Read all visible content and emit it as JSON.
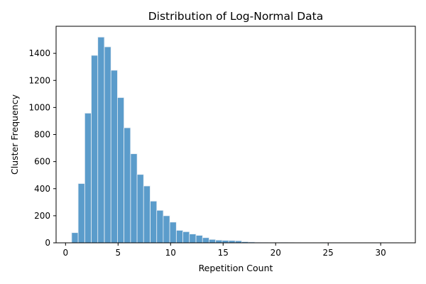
{
  "chart_data": {
    "type": "bar",
    "title": "Distribution of Log-Normal Data",
    "xlabel": "Repetition Count",
    "ylabel": "Cluster Frequency",
    "xlim": [
      -0.9,
      33.3
    ],
    "ylim": [
      0,
      1600
    ],
    "x_ticks": [
      0,
      5,
      10,
      15,
      20,
      25,
      30
    ],
    "y_ticks": [
      0,
      200,
      400,
      600,
      800,
      1000,
      1200,
      1400
    ],
    "bin_width": 0.6226,
    "bin_start": 0.58,
    "bins": [
      {
        "x0": 0.58,
        "count": 75
      },
      {
        "x0": 1.2,
        "count": 438
      },
      {
        "x0": 1.83,
        "count": 958
      },
      {
        "x0": 2.45,
        "count": 1385
      },
      {
        "x0": 3.07,
        "count": 1520
      },
      {
        "x0": 3.7,
        "count": 1448
      },
      {
        "x0": 4.32,
        "count": 1275
      },
      {
        "x0": 4.94,
        "count": 1073
      },
      {
        "x0": 5.56,
        "count": 850
      },
      {
        "x0": 6.19,
        "count": 658
      },
      {
        "x0": 6.81,
        "count": 505
      },
      {
        "x0": 7.43,
        "count": 420
      },
      {
        "x0": 8.06,
        "count": 308
      },
      {
        "x0": 8.68,
        "count": 240
      },
      {
        "x0": 9.3,
        "count": 200
      },
      {
        "x0": 9.92,
        "count": 153
      },
      {
        "x0": 10.55,
        "count": 92
      },
      {
        "x0": 11.17,
        "count": 82
      },
      {
        "x0": 11.79,
        "count": 65
      },
      {
        "x0": 12.42,
        "count": 55
      },
      {
        "x0": 13.04,
        "count": 38
      },
      {
        "x0": 13.66,
        "count": 25
      },
      {
        "x0": 14.29,
        "count": 20
      },
      {
        "x0": 14.91,
        "count": 18
      },
      {
        "x0": 15.53,
        "count": 17
      },
      {
        "x0": 16.15,
        "count": 15
      },
      {
        "x0": 16.78,
        "count": 8
      },
      {
        "x0": 17.4,
        "count": 6
      },
      {
        "x0": 18.02,
        "count": 4
      },
      {
        "x0": 18.65,
        "count": 3
      },
      {
        "x0": 19.27,
        "count": 2
      },
      {
        "x0": 19.89,
        "count": 2
      },
      {
        "x0": 20.52,
        "count": 3
      },
      {
        "x0": 21.14,
        "count": 2
      },
      {
        "x0": 21.76,
        "count": 1
      },
      {
        "x0": 22.38,
        "count": 1
      },
      {
        "x0": 23.01,
        "count": 1
      },
      {
        "x0": 23.63,
        "count": 1
      },
      {
        "x0": 24.25,
        "count": 2
      },
      {
        "x0": 24.88,
        "count": 1
      },
      {
        "x0": 25.5,
        "count": 1
      },
      {
        "x0": 26.12,
        "count": 1
      },
      {
        "x0": 26.75,
        "count": 1
      },
      {
        "x0": 27.37,
        "count": 1
      },
      {
        "x0": 27.99,
        "count": 1
      },
      {
        "x0": 28.61,
        "count": 1
      },
      {
        "x0": 29.24,
        "count": 1
      },
      {
        "x0": 29.86,
        "count": 1
      },
      {
        "x0": 30.48,
        "count": 1
      },
      {
        "x0": 31.11,
        "count": 1
      }
    ],
    "grid": false,
    "legend": "none",
    "colors": {
      "bar_fill": "#5b9ccb",
      "bar_edge": "#e8eef4",
      "axis": "#000000",
      "background": "#ffffff"
    }
  }
}
